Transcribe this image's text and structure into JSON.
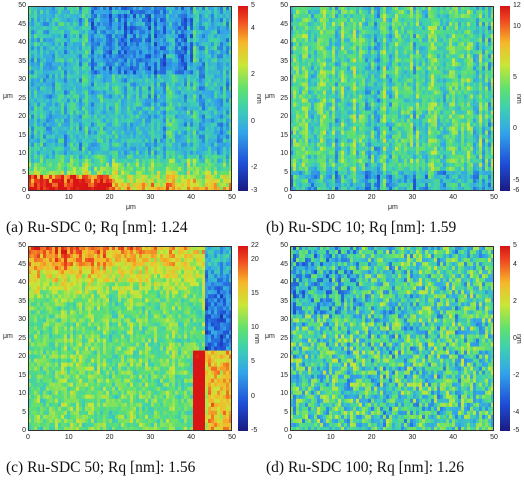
{
  "chart_data": [
    {
      "type": "heatmap",
      "caption": "(a) Ru-SDC 0; Rq [nm]: 1.24",
      "xlabel": "μm",
      "ylabel": "μm",
      "colorbar_label": "nm",
      "xlim": [
        0,
        50
      ],
      "ylim": [
        0,
        50
      ],
      "xticks": [
        "0",
        "10",
        "20",
        "30",
        "40",
        "50"
      ],
      "yticks": [
        "0",
        "5",
        "10",
        "15",
        "20",
        "25",
        "30",
        "35",
        "40",
        "45",
        "50"
      ],
      "colorbar": {
        "min": -3,
        "max": 5,
        "ticks": [
          "-3",
          "-2",
          "0",
          "2",
          "4",
          "5"
        ]
      }
    },
    {
      "type": "heatmap",
      "caption": "(b) Ru-SDC 10; Rq [nm]: 1.59",
      "xlabel": "μm",
      "ylabel": "μm",
      "colorbar_label": "nm",
      "xlim": [
        0,
        50
      ],
      "ylim": [
        0,
        50
      ],
      "xticks": [
        "0",
        "10",
        "20",
        "30",
        "40",
        "50"
      ],
      "yticks": [
        "0",
        "5",
        "10",
        "15",
        "20",
        "25",
        "30",
        "35",
        "40",
        "45",
        "50"
      ],
      "colorbar": {
        "min": -6,
        "max": 12,
        "ticks": [
          "-6",
          "-5",
          "0",
          "5",
          "10",
          "12"
        ]
      }
    },
    {
      "type": "heatmap",
      "caption": "(c) Ru-SDC 50; Rq [nm]: 1.56",
      "xlabel": "μm",
      "ylabel": "μm",
      "colorbar_label": "nm",
      "xlim": [
        0,
        50
      ],
      "ylim": [
        0,
        50
      ],
      "xticks": [
        "0",
        "10",
        "20",
        "30",
        "40",
        "50"
      ],
      "yticks": [
        "0",
        "5",
        "10",
        "15",
        "20",
        "25",
        "30",
        "35",
        "40",
        "45",
        "50"
      ],
      "colorbar": {
        "min": -5,
        "max": 22,
        "ticks": [
          "-5",
          "0",
          "5",
          "10",
          "15",
          "20",
          "22"
        ]
      }
    },
    {
      "type": "heatmap",
      "caption": "(d) Ru-SDC 100; Rq [nm]: 1.26",
      "xlabel": "μm",
      "ylabel": "μm",
      "colorbar_label": "nm",
      "xlim": [
        0,
        50
      ],
      "ylim": [
        0,
        50
      ],
      "xticks": [
        "0",
        "10",
        "20",
        "30",
        "40",
        "50"
      ],
      "yticks": [
        "0",
        "5",
        "10",
        "15",
        "20",
        "25",
        "30",
        "35",
        "40",
        "45",
        "50"
      ],
      "colorbar": {
        "min": -5,
        "max": 5,
        "ticks": [
          "-5",
          "-4",
          "-2",
          "0",
          "2",
          "4",
          "5"
        ]
      }
    }
  ]
}
